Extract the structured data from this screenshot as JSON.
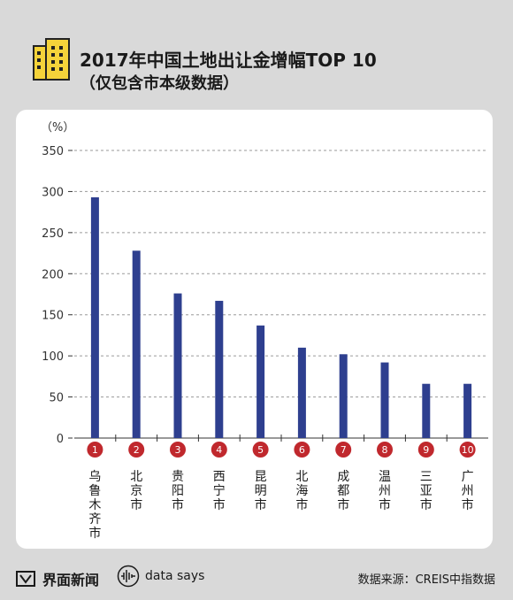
{
  "header": {
    "title": "2017年中国土地出让金增幅TOP 10",
    "subtitle": "（仅包含市本级数据）",
    "logo_icon": "building-icon"
  },
  "chart_data": {
    "type": "bar",
    "title": "2017年中国土地出让金增幅TOP 10",
    "subtitle": "（仅包含市本级数据）",
    "ylabel": "（%）",
    "ylim": [
      0,
      350
    ],
    "yticks": [
      0,
      50,
      100,
      150,
      200,
      250,
      300,
      350
    ],
    "grid": "dashed horizontal",
    "categories": [
      "乌鲁木齐市",
      "北京市",
      "贵阳市",
      "西宁市",
      "昆明市",
      "北海市",
      "成都市",
      "温州市",
      "三亚市",
      "广州市"
    ],
    "ranks": [
      "1",
      "2",
      "3",
      "4",
      "5",
      "6",
      "7",
      "8",
      "9",
      "10"
    ],
    "values": [
      293,
      228,
      176,
      167,
      137,
      110,
      102,
      92,
      66,
      66
    ],
    "colors": {
      "bar": "#2e3f8f",
      "rank_badge": "#c0282d",
      "grid": "#9a9a9a"
    }
  },
  "footer": {
    "brand_name": "界面新闻",
    "brand_icon": "jiemian-logo-icon",
    "datasays_label": "data says",
    "datasays_icon": "waveform-icon",
    "source": "数据来源：CREIS中指数据"
  }
}
